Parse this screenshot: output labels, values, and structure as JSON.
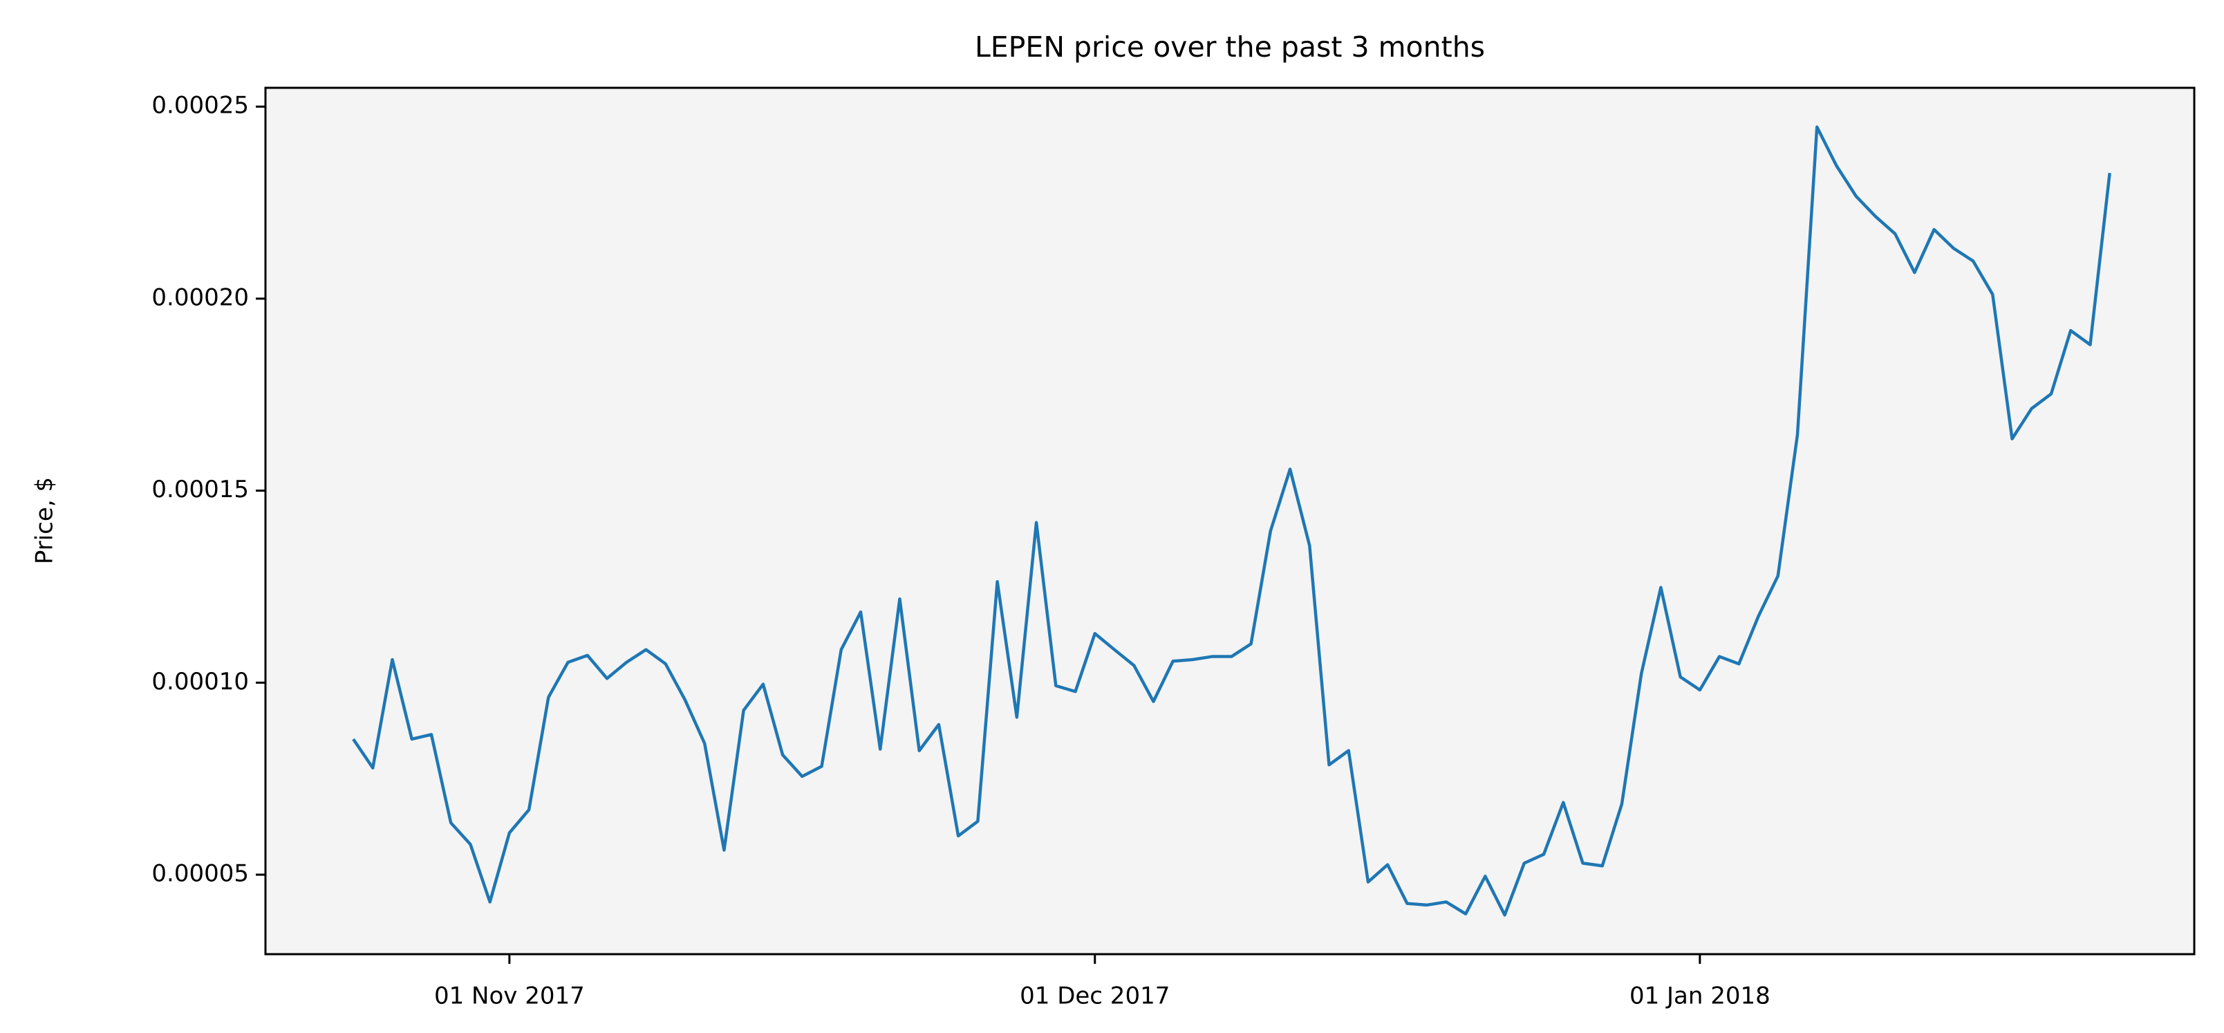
{
  "chart_data": {
    "type": "line",
    "title": "LEPEN price over the past 3 months",
    "y_label": "Price, $",
    "x": [
      "2017-10-24",
      "2017-10-25",
      "2017-10-26",
      "2017-10-27",
      "2017-10-28",
      "2017-10-29",
      "2017-10-30",
      "2017-10-31",
      "2017-11-01",
      "2017-11-02",
      "2017-11-03",
      "2017-11-04",
      "2017-11-05",
      "2017-11-06",
      "2017-11-07",
      "2017-11-08",
      "2017-11-09",
      "2017-11-10",
      "2017-11-11",
      "2017-11-12",
      "2017-11-13",
      "2017-11-14",
      "2017-11-15",
      "2017-11-16",
      "2017-11-17",
      "2017-11-18",
      "2017-11-19",
      "2017-11-20",
      "2017-11-21",
      "2017-11-22",
      "2017-11-23",
      "2017-11-24",
      "2017-11-25",
      "2017-11-26",
      "2017-11-27",
      "2017-11-28",
      "2017-11-29",
      "2017-11-30",
      "2017-12-01",
      "2017-12-02",
      "2017-12-03",
      "2017-12-04",
      "2017-12-05",
      "2017-12-06",
      "2017-12-07",
      "2017-12-08",
      "2017-12-09",
      "2017-12-10",
      "2017-12-11",
      "2017-12-12",
      "2017-12-13",
      "2017-12-14",
      "2017-12-15",
      "2017-12-16",
      "2017-12-17",
      "2017-12-18",
      "2017-12-19",
      "2017-12-20",
      "2017-12-21",
      "2017-12-22",
      "2017-12-23",
      "2017-12-24",
      "2017-12-25",
      "2017-12-26",
      "2017-12-27",
      "2017-12-28",
      "2017-12-29",
      "2017-12-30",
      "2017-12-31",
      "2018-01-01",
      "2018-01-02",
      "2018-01-03",
      "2018-01-04",
      "2018-01-05",
      "2018-01-06",
      "2018-01-07",
      "2018-01-08",
      "2018-01-09",
      "2018-01-10",
      "2018-01-11",
      "2018-01-12",
      "2018-01-13",
      "2018-01-14",
      "2018-01-15",
      "2018-01-16",
      "2018-01-17",
      "2018-01-18",
      "2018-01-19",
      "2018-01-20",
      "2018-01-21",
      "2018-01-22"
    ],
    "series": [
      {
        "name": "LEPEN",
        "color": "#1f77b4",
        "values": [
          8.53e-05,
          7.78e-05,
          0.000106,
          8.53e-05,
          8.65e-05,
          6.35e-05,
          5.79e-05,
          4.29e-05,
          6.09e-05,
          6.69e-05,
          9.62e-05,
          0.0001053,
          0.0001071,
          0.0001011,
          0.0001053,
          0.0001086,
          0.0001049,
          9.55e-05,
          8.42e-05,
          5.64e-05,
          9.28e-05,
          9.96e-05,
          8.12e-05,
          7.56e-05,
          7.82e-05,
          0.0001086,
          0.0001184,
          8.27e-05,
          0.0001218,
          8.23e-05,
          8.91e-05,
          6.01e-05,
          6.39e-05,
          0.0001263,
          9.1e-05,
          0.0001417,
          9.92e-05,
          9.77e-05,
          0.0001128,
          0.0001086,
          0.0001045,
          9.51e-05,
          0.0001056,
          0.000106,
          0.0001068,
          0.0001068,
          0.0001101,
          0.0001395,
          0.0001556,
          0.0001357,
          7.86e-05,
          8.23e-05,
          4.81e-05,
          5.26e-05,
          4.25e-05,
          4.21e-05,
          4.29e-05,
          3.98e-05,
          4.96e-05,
          3.95e-05,
          5.3e-05,
          5.53e-05,
          6.88e-05,
          5.3e-05,
          5.23e-05,
          6.84e-05,
          0.0001023,
          0.0001248,
          0.0001015,
          9.81e-05,
          0.0001068,
          0.0001049,
          0.0001173,
          0.0001278,
          0.0001646,
          0.0002447,
          0.0002346,
          0.0002267,
          0.0002214,
          0.0002169,
          0.0002068,
          0.000218,
          0.0002131,
          0.0002098,
          0.0002011,
          0.0001635,
          0.0001714,
          0.0001752,
          0.0001917,
          0.000188,
          0.0002327
        ]
      }
    ],
    "xlim": [
      "2017-10-19T12:00:00Z",
      "2018-01-26T08:00:00Z"
    ],
    "xticks": [
      {
        "value": "2017-11-01",
        "label": "01 Nov 2017"
      },
      {
        "value": "2017-12-01",
        "label": "01 Dec 2017"
      },
      {
        "value": "2018-01-01",
        "label": "01 Jan 2018"
      }
    ],
    "ylim": [
      2.93e-05,
      0.0002549
    ],
    "yticks": [
      {
        "value": 5e-05,
        "label": "0.00005"
      },
      {
        "value": 0.0001,
        "label": "0.00010"
      },
      {
        "value": 0.00015,
        "label": "0.00015"
      },
      {
        "value": 0.0002,
        "label": "0.00020"
      },
      {
        "value": 0.00025,
        "label": "0.00025"
      }
    ],
    "background": "#f4f4f4",
    "grid": false
  }
}
